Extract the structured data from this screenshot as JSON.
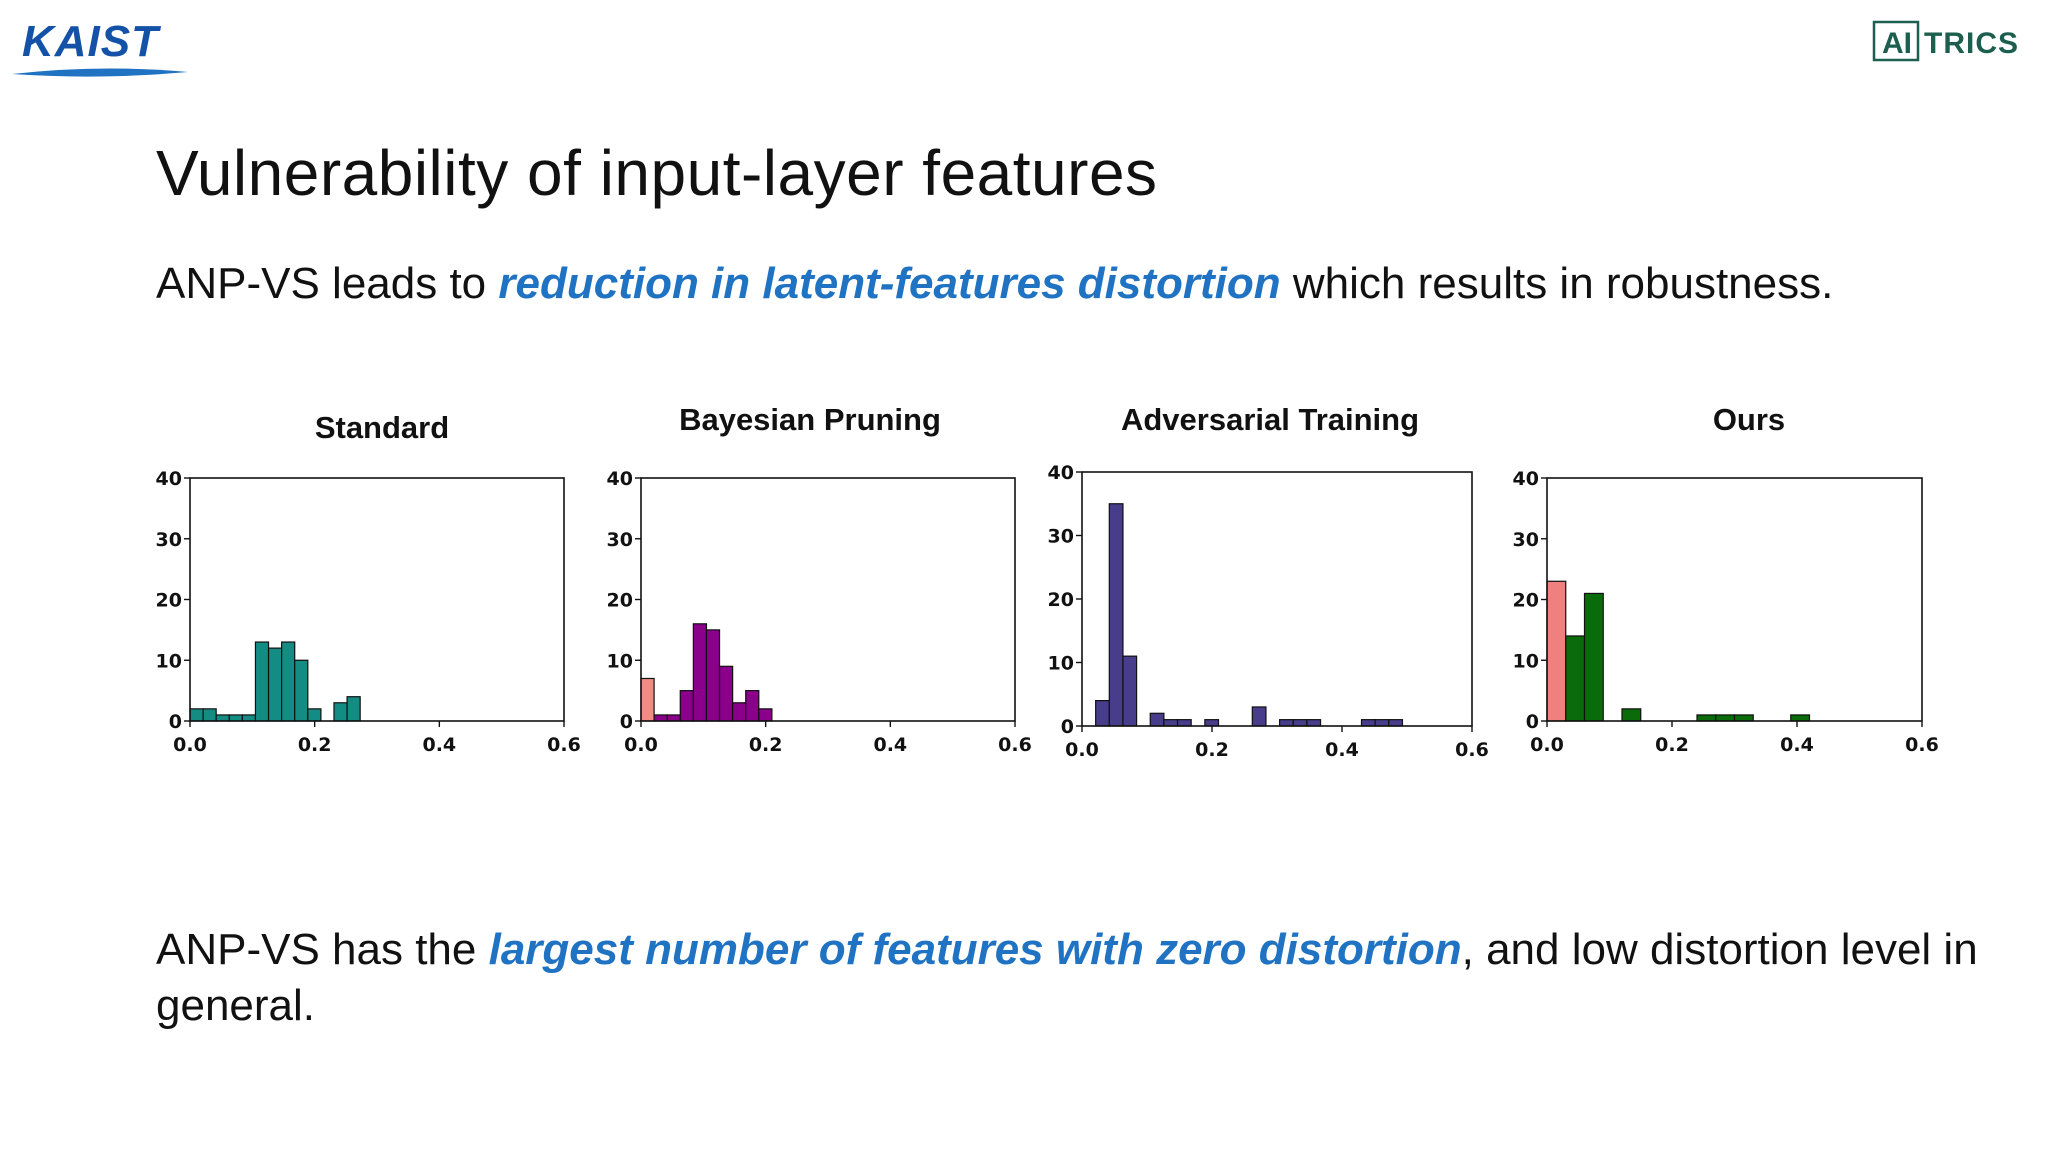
{
  "logos": {
    "left": {
      "text": "KAIST",
      "color": "#1452a8"
    },
    "right": {
      "boxed_text": "AI",
      "text": "TRICS",
      "color": "#1c5f4e"
    }
  },
  "slide": {
    "title": "Vulnerability of input-layer features",
    "line1": {
      "before": "ANP-VS leads to ",
      "highlight": "reduction in latent-features distortion",
      "after": " which results in robustness."
    },
    "line2": {
      "before": "ANP-VS has the ",
      "highlight": "largest number of features with zero distortion",
      "after": ", and low distortion level in general."
    },
    "highlight_color": "#1f73c2"
  },
  "chart_data": [
    {
      "type": "bar",
      "title": "Standard",
      "xlim": [
        0,
        0.6
      ],
      "ylim": [
        0,
        40
      ],
      "xticks": [
        "0.0",
        "0.2",
        "0.4",
        "0.6"
      ],
      "yticks": [
        "0",
        "10",
        "20",
        "30",
        "40"
      ],
      "bin_width": 0.021,
      "x": [
        0.0,
        0.021,
        0.042,
        0.063,
        0.084,
        0.105,
        0.126,
        0.147,
        0.168,
        0.189,
        0.21,
        0.231
      ],
      "values": [
        2,
        2,
        1,
        1,
        1,
        13,
        12,
        13,
        10,
        2,
        0,
        3
      ],
      "extra_x": [
        0.252
      ],
      "extra_values": [
        4
      ],
      "colors": [
        "#138c83"
      ],
      "grid": false
    },
    {
      "type": "bar",
      "title": "Bayesian Pruning",
      "xlim": [
        0,
        0.6
      ],
      "ylim": [
        0,
        40
      ],
      "xticks": [
        "0.0",
        "0.2",
        "0.4",
        "0.6"
      ],
      "yticks": [
        "0",
        "10",
        "20",
        "30",
        "40"
      ],
      "bin_width": 0.021,
      "x": [
        0.0,
        0.021,
        0.042,
        0.063,
        0.084,
        0.105,
        0.126,
        0.147,
        0.168,
        0.189
      ],
      "values": [
        7,
        1,
        1,
        5,
        16,
        15,
        9,
        3,
        5,
        2
      ],
      "colors": [
        "#f08c84",
        "#8a008a",
        "#8a008a",
        "#8a008a",
        "#8a008a",
        "#8a008a",
        "#8a008a",
        "#8a008a",
        "#8a008a",
        "#8a008a"
      ],
      "grid": false
    },
    {
      "type": "bar",
      "title": "Adversarial Training",
      "xlim": [
        0,
        0.6
      ],
      "ylim": [
        0,
        40
      ],
      "xticks": [
        "0.0",
        "0.2",
        "0.4",
        "0.6"
      ],
      "yticks": [
        "0",
        "10",
        "20",
        "30",
        "40"
      ],
      "bin_width": 0.021,
      "x": [
        0.021,
        0.042,
        0.063,
        0.105,
        0.126,
        0.147,
        0.189,
        0.262,
        0.304,
        0.325,
        0.346,
        0.43,
        0.451,
        0.472
      ],
      "values": [
        4,
        35,
        11,
        2,
        1,
        1,
        1,
        3,
        1,
        1,
        1,
        1,
        1,
        1
      ],
      "colors": [
        "#483d8b"
      ],
      "grid": false
    },
    {
      "type": "bar",
      "title": "Ours",
      "xlim": [
        0,
        0.6
      ],
      "ylim": [
        0,
        40
      ],
      "xticks": [
        "0.0",
        "0.2",
        "0.4",
        "0.6"
      ],
      "yticks": [
        "0",
        "10",
        "20",
        "30",
        "40"
      ],
      "bin_width": 0.03,
      "x": [
        0.0,
        0.03,
        0.06,
        0.12,
        0.24,
        0.27,
        0.3,
        0.39
      ],
      "values": [
        23,
        14,
        21,
        2,
        1,
        1,
        1,
        1
      ],
      "colors": [
        "#f08080",
        "#0a6b0a",
        "#0a6b0a",
        "#0a6b0a",
        "#0a6b0a",
        "#0a6b0a",
        "#0a6b0a",
        "#0a6b0a"
      ],
      "grid": false
    }
  ]
}
